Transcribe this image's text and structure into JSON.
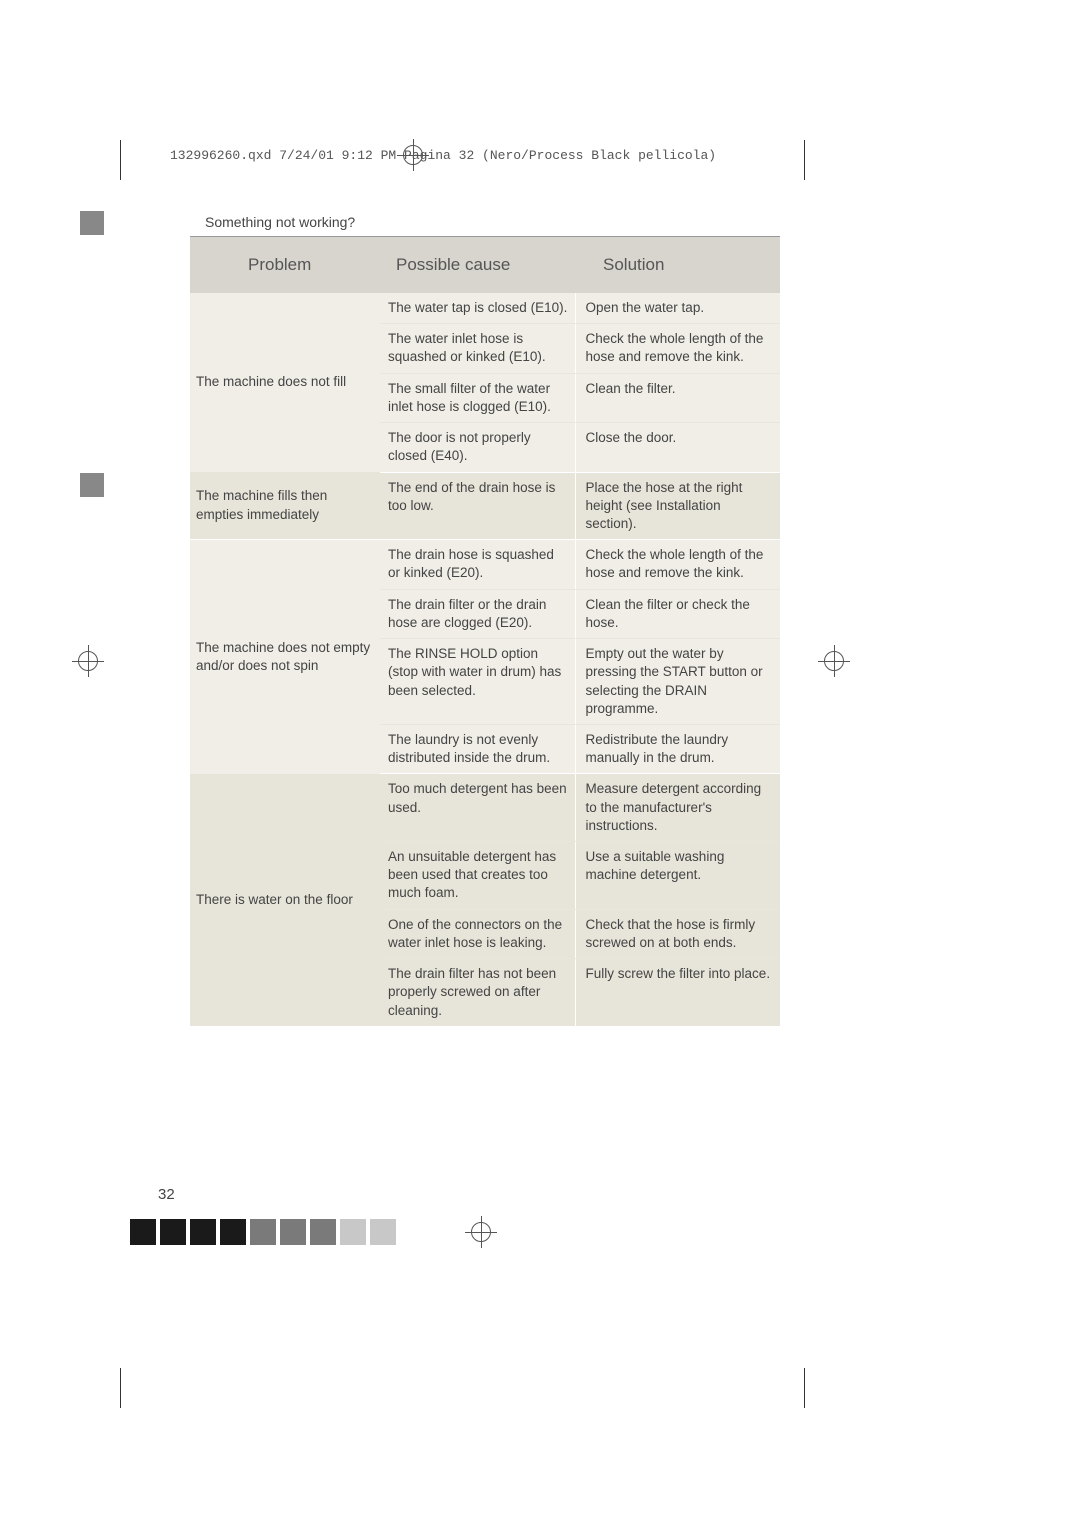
{
  "header": {
    "text": "132996260.qxd  7/24/01  9:12 PM  Pagina  32      (Nero/Process Black pellicola)"
  },
  "section_title": "Something not working?",
  "page_number": "32",
  "table": {
    "headers": {
      "problem": "Problem",
      "cause": "Possible cause",
      "solution": "Solution"
    },
    "groups": [
      {
        "problem": "The machine does not fill",
        "bg": "light",
        "rows": [
          {
            "cause": "The water tap is closed (E10).",
            "solution": "Open the water tap."
          },
          {
            "cause": "The water inlet hose is squashed or kinked (E10).",
            "solution": "Check the whole length of the hose and remove the kink."
          },
          {
            "cause": "The small filter of the water inlet hose is clogged (E10).",
            "solution": "Clean the filter."
          },
          {
            "cause": "The door is not properly closed (E40).",
            "solution": "Close the door."
          }
        ]
      },
      {
        "problem": "The machine fills then empties immediately",
        "bg": "dark",
        "rows": [
          {
            "cause": "The end of the drain hose is too low.",
            "solution": "Place the hose at the right height (see Installation section)."
          }
        ]
      },
      {
        "problem": "The machine does not empty and/or does not spin",
        "bg": "light",
        "rows": [
          {
            "cause": "The drain hose is squashed or kinked (E20).",
            "solution": "Check the whole length of the hose and remove the kink."
          },
          {
            "cause": "The drain filter or the drain hose are clogged (E20).",
            "solution": "Clean the filter or check the hose."
          },
          {
            "cause": "The RINSE HOLD option (stop with water in drum) has been selected.",
            "solution": "Empty out the water by pressing the START button or selecting the DRAIN programme."
          },
          {
            "cause": "The laundry is not evenly distributed inside the drum.",
            "solution": "Redistribute the laundry manually in the drum."
          }
        ]
      },
      {
        "problem": "There is water on the floor",
        "bg": "dark",
        "rows": [
          {
            "cause": "Too much detergent has been used.",
            "solution": "Measure detergent according to the manufacturer's instructions."
          },
          {
            "cause": "An unsuitable detergent has been used that creates too much foam.",
            "solution": "Use a suitable washing machine detergent."
          },
          {
            "cause": "One of the connectors on the water inlet hose is leaking.",
            "solution": "Check that the hose is firmly screwed on at both ends."
          },
          {
            "cause": "The drain filter has not been properly screwed on after cleaning.",
            "solution": "Fully screw the filter into place."
          }
        ]
      }
    ]
  },
  "color_bar": [
    "#1a1a1a",
    "#1a1a1a",
    "#1a1a1a",
    "#1a1a1a",
    "#7a7a7a",
    "#7a7a7a",
    "#7a7a7a",
    "#c8c8c8",
    "#c8c8c8"
  ]
}
